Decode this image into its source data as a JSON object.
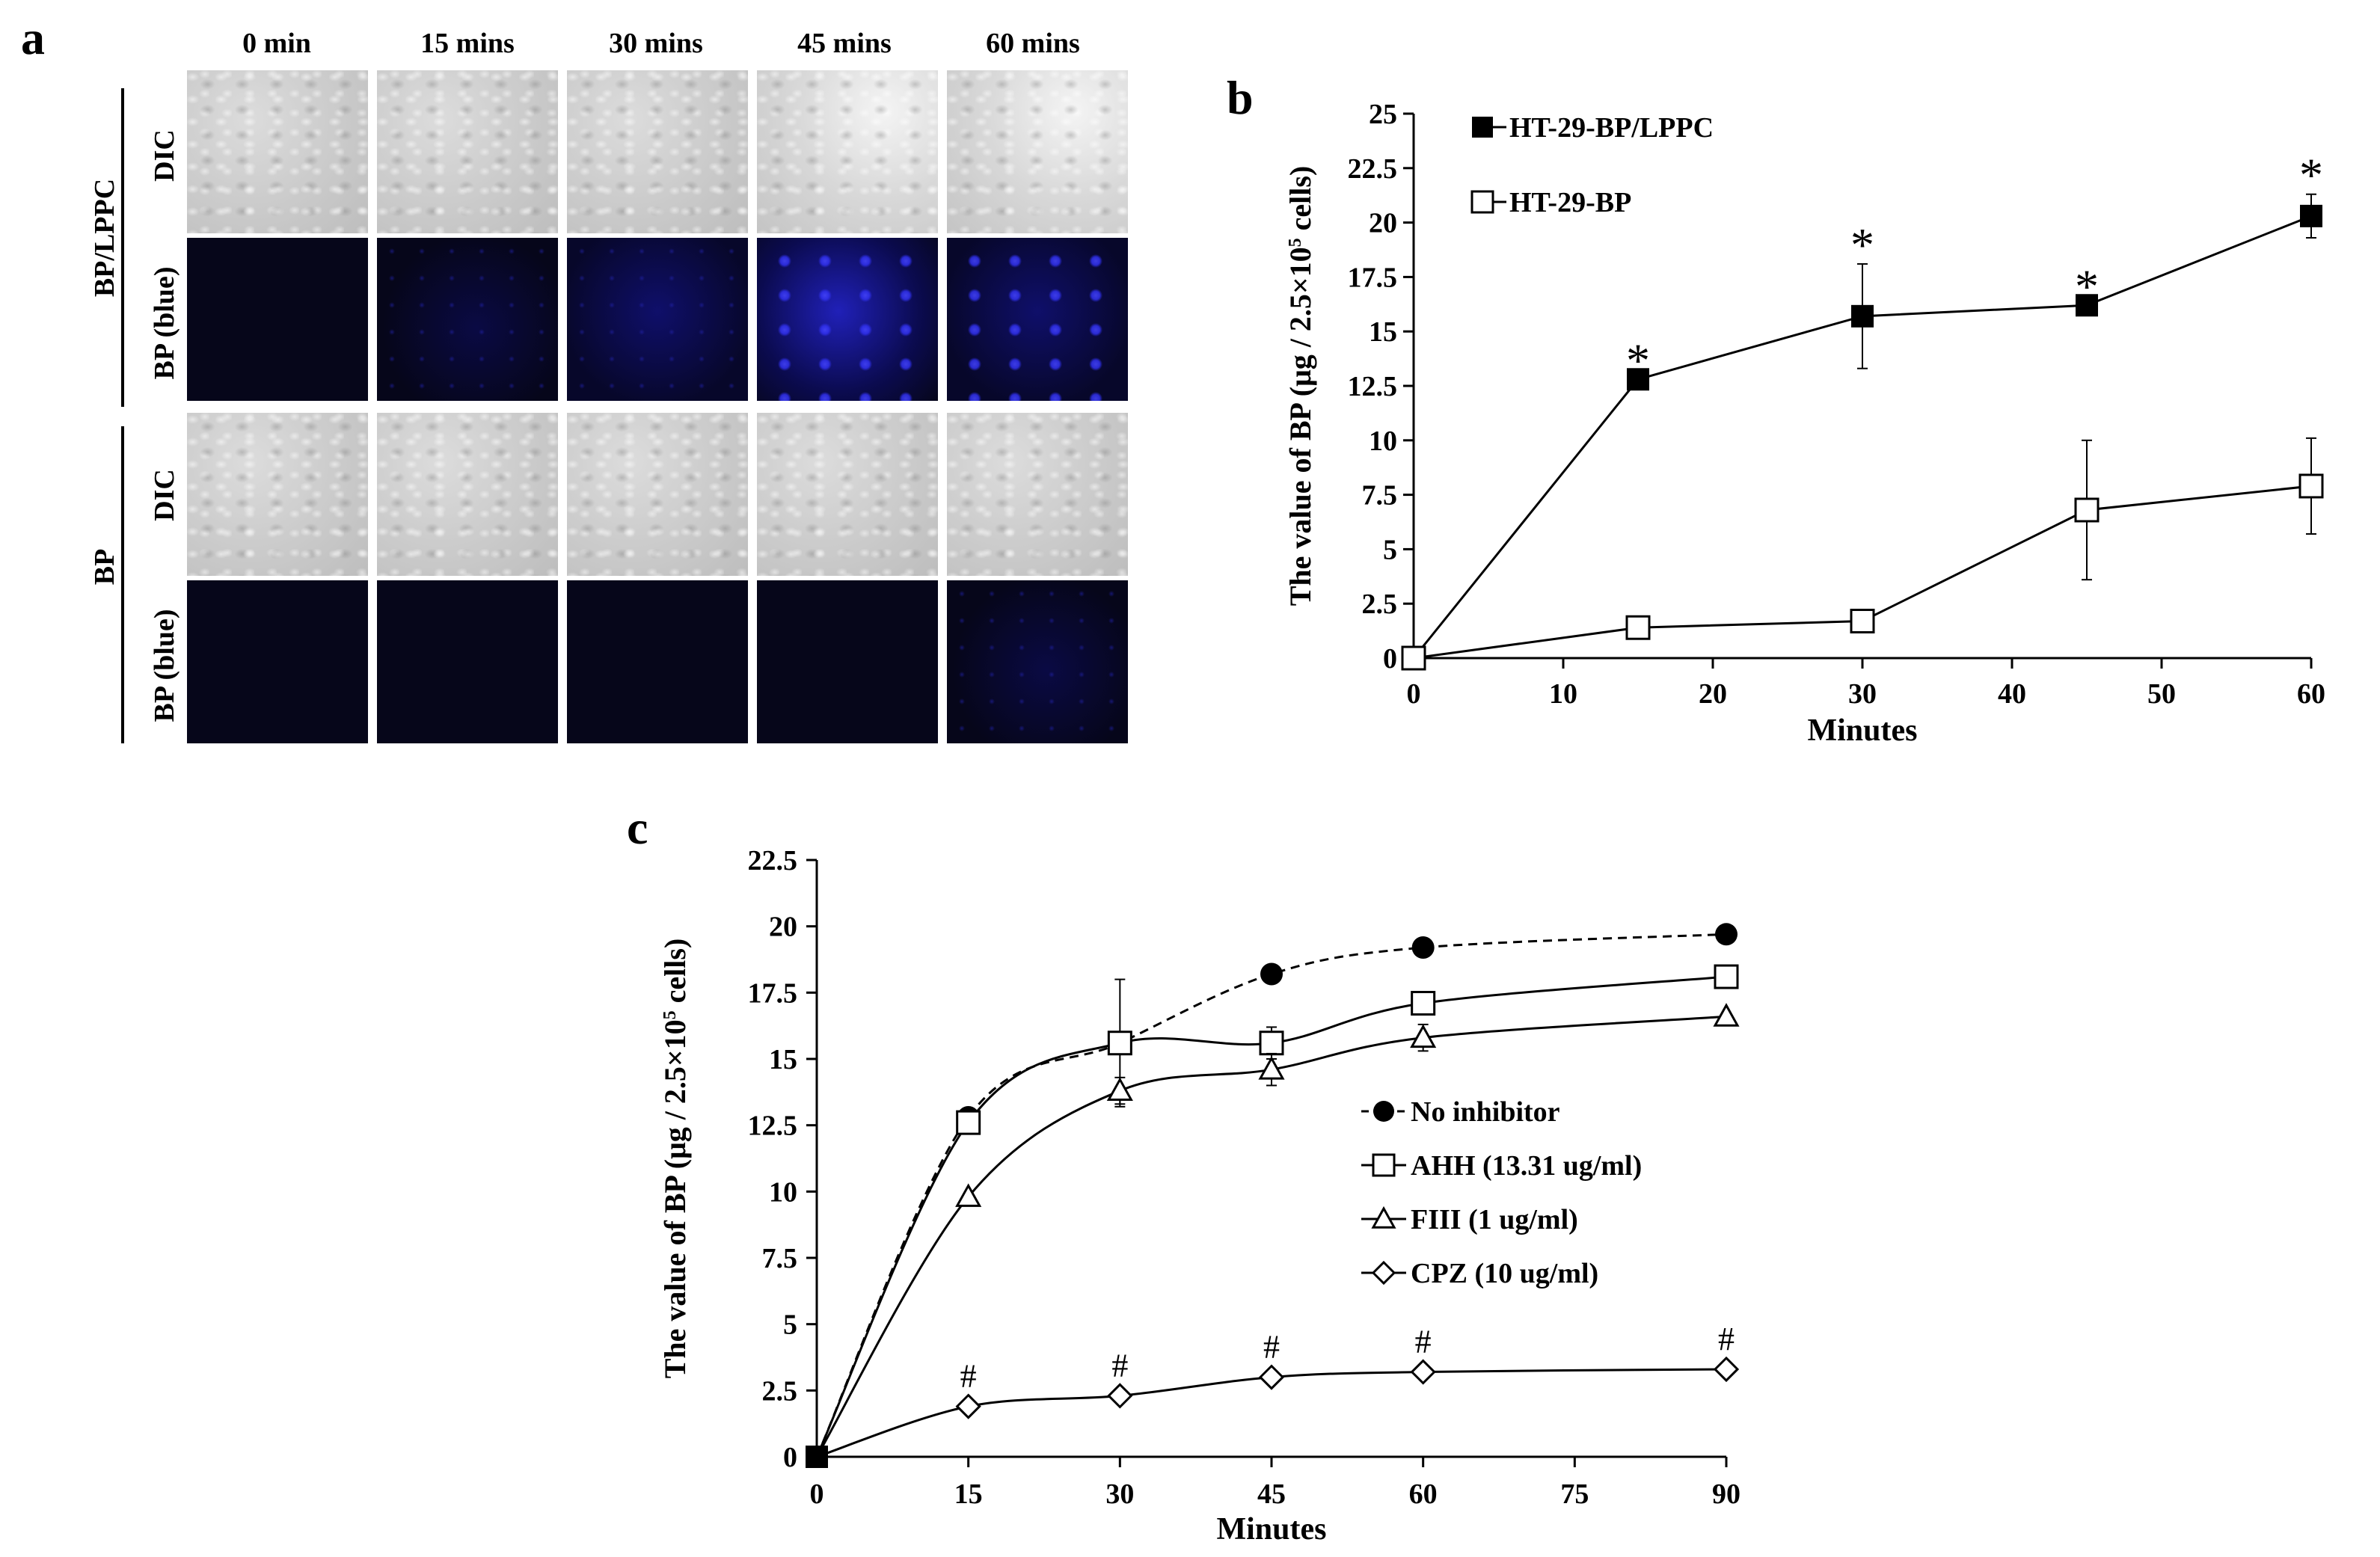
{
  "panel_a": {
    "letter": "a",
    "columns": [
      "0 min",
      "15 mins",
      "30 mins",
      "45 mins",
      "60 mins"
    ],
    "groups": [
      {
        "label": "BP/LPPC",
        "rows": [
          "DIC",
          "BP (blue)"
        ]
      },
      {
        "label": "BP",
        "rows": [
          "DIC",
          "BP (blue)"
        ]
      }
    ]
  },
  "panel_b": {
    "letter": "b",
    "chart_data": {
      "type": "line",
      "title": "",
      "xlabel": "Minutes",
      "ylabel_parts": [
        "The value of BP (μg / 2.5×10",
        "5",
        " cells)"
      ],
      "xlim": [
        0,
        60
      ],
      "ylim": [
        0,
        25
      ],
      "xticks": [
        0,
        10,
        20,
        30,
        40,
        50,
        60
      ],
      "yticks": [
        0,
        2.5,
        5,
        7.5,
        10,
        12.5,
        15,
        17.5,
        20,
        22.5,
        25
      ],
      "ytick_labels": [
        "0",
        "2.5",
        "5",
        "7.5",
        "10",
        "12.5",
        "15",
        "17.5",
        "20",
        "22.5",
        "25"
      ],
      "legend_position": "top-left",
      "series": [
        {
          "name": "HT-29-BP/LPPC",
          "marker": "filled-square",
          "x": [
            0,
            15,
            30,
            45,
            60
          ],
          "y": [
            0,
            12.8,
            15.7,
            16.2,
            20.3
          ],
          "err": [
            0,
            0,
            2.4,
            0,
            1.0
          ],
          "annotations": [
            "",
            "*",
            "*",
            "*",
            "*"
          ]
        },
        {
          "name": "HT-29-BP",
          "marker": "open-square",
          "x": [
            0,
            15,
            30,
            45,
            60
          ],
          "y": [
            0,
            1.4,
            1.7,
            6.8,
            7.9
          ],
          "err": [
            0,
            0,
            0.3,
            3.2,
            2.2
          ],
          "annotations": [
            "",
            "",
            "",
            "",
            ""
          ]
        }
      ]
    }
  },
  "panel_c": {
    "letter": "c",
    "chart_data": {
      "type": "line",
      "title": "",
      "xlabel": "Minutes",
      "ylabel_parts": [
        "The value of BP (μg / 2.5×10",
        "5",
        " cells)"
      ],
      "x_categories": [
        "0",
        "15",
        "30",
        "45",
        "60",
        "75",
        "90"
      ],
      "ylim": [
        0,
        22.5
      ],
      "yticks": [
        0,
        2.5,
        5,
        7.5,
        10,
        12.5,
        15,
        17.5,
        20,
        22.5
      ],
      "ytick_labels": [
        "0",
        "2.5",
        "5",
        "7.5",
        "10",
        "12.5",
        "15",
        "17.5",
        "20",
        "22.5"
      ],
      "legend_position": "center-right",
      "series": [
        {
          "name": "No inhibitor",
          "marker": "filled-circle",
          "dashed": true,
          "x": [
            "0",
            "15",
            "30",
            "45",
            "60",
            "90"
          ],
          "y": [
            0,
            12.8,
            15.6,
            18.2,
            19.2,
            19.7
          ],
          "err": [
            0,
            0,
            2.4,
            0,
            0,
            0
          ],
          "annotations": [
            "",
            "",
            "",
            "",
            "",
            ""
          ]
        },
        {
          "name": "AHH (13.31 ug/ml)",
          "marker": "open-square",
          "dashed": false,
          "x": [
            "0",
            "15",
            "30",
            "45",
            "60",
            "90"
          ],
          "y": [
            0,
            12.6,
            15.6,
            15.6,
            17.1,
            18.1
          ],
          "err": [
            0,
            0.3,
            0.4,
            0.6,
            0.4,
            0.3
          ],
          "annotations": [
            "",
            "",
            "",
            "",
            "",
            ""
          ]
        },
        {
          "name": "FIII (1 ug/ml)",
          "marker": "open-triangle",
          "dashed": false,
          "x": [
            "0",
            "15",
            "30",
            "45",
            "60",
            "90"
          ],
          "y": [
            0,
            9.8,
            13.8,
            14.6,
            15.8,
            16.6
          ],
          "err": [
            0,
            0,
            0.5,
            0.6,
            0.5,
            0
          ],
          "annotations": [
            "",
            "",
            "",
            "",
            "",
            ""
          ]
        },
        {
          "name": "CPZ (10 ug/ml)",
          "marker": "open-diamond",
          "dashed": false,
          "x": [
            "0",
            "15",
            "30",
            "45",
            "60",
            "90"
          ],
          "y": [
            0,
            1.9,
            2.3,
            3.0,
            3.2,
            3.3
          ],
          "err": [
            0,
            0,
            0,
            0,
            0,
            0
          ],
          "annotations": [
            "",
            "#",
            "#",
            "#",
            "#",
            "#"
          ]
        }
      ]
    }
  }
}
